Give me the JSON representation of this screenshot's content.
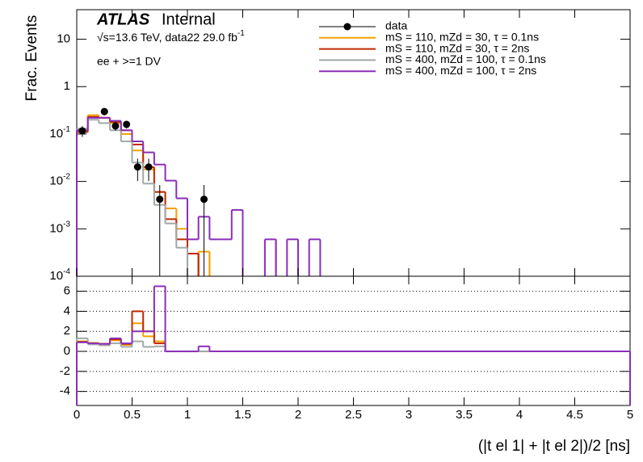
{
  "chart_data": [
    {
      "type": "histogram",
      "log_y": true,
      "ylabel": "Frac. Events",
      "experiment": "ATLAS",
      "status": "Internal",
      "energy_label": "√s=13.6 TeV, data22 29.0 fb",
      "energy_exponent": "-1",
      "channel": "ee + >=1 DV",
      "legend": "top-right",
      "xlim": [
        0,
        5
      ],
      "ylim": [
        0.0001,
        42
      ],
      "yticks": [
        {
          "value": 0.0001,
          "label": "10",
          "exponent": "-4"
        },
        {
          "value": 0.001,
          "label": "10",
          "exponent": "-3"
        },
        {
          "value": 0.01,
          "label": "10",
          "exponent": "-2"
        },
        {
          "value": 0.1,
          "label": "10",
          "exponent": "-1"
        },
        1,
        10
      ],
      "bins": [
        0,
        0.1,
        0.2,
        0.3,
        0.4,
        0.5,
        0.6,
        0.7,
        0.8,
        0.9,
        1.0,
        1.1,
        1.2,
        1.3,
        1.4,
        1.5,
        1.6,
        1.7,
        1.8,
        1.9,
        2.0,
        2.1,
        2.2
      ],
      "series": [
        {
          "name": "data",
          "color": "#000000",
          "marker": "point",
          "values": [
            0.117,
            null,
            0.298,
            0.148,
            0.16,
            0.0202,
            0.0202,
            0.0042,
            null,
            null,
            null,
            0.0042,
            null,
            null,
            null,
            null,
            null,
            null,
            null,
            null,
            null,
            null
          ],
          "errors": [
            0.03,
            null,
            0.05,
            0.03,
            0.03,
            0.01,
            0.01,
            0.0042,
            null,
            null,
            null,
            0.0042,
            null,
            null,
            null,
            null,
            null,
            null,
            null,
            null,
            null,
            null
          ]
        },
        {
          "name": "mS = 110, mZd = 30, τ = 0.1ns",
          "color": "#f5a000",
          "values": [
            0.12,
            0.25,
            0.22,
            0.17,
            0.1,
            0.045,
            0.018,
            0.006,
            0.0027,
            0.001,
            null,
            0.00033,
            null,
            null,
            null,
            null,
            null,
            null,
            null,
            null,
            null,
            null
          ]
        },
        {
          "name": "mS = 110, mZd = 30, τ = 2ns",
          "color": "#c02800",
          "values": [
            0.11,
            0.23,
            0.22,
            0.18,
            0.12,
            0.06,
            0.02,
            0.006,
            0.0016,
            0.0006,
            0.0003,
            null,
            null,
            null,
            null,
            null,
            null,
            null,
            null,
            null,
            null,
            null
          ]
        },
        {
          "name": "mS = 400, mZd = 100, τ = 0.1ns",
          "color": "#a0a8a8",
          "values": [
            0.13,
            0.2,
            0.17,
            0.12,
            0.07,
            0.025,
            0.009,
            0.0032,
            0.0013,
            0.0004,
            null,
            null,
            null,
            null,
            null,
            null,
            null,
            null,
            null,
            null,
            null,
            null
          ]
        },
        {
          "name": "mS = 400, mZd = 100, τ = 2ns",
          "color": "#8a2fb8",
          "values": [
            0.12,
            0.22,
            0.22,
            0.19,
            0.12,
            0.07,
            0.041,
            0.0227,
            0.0104,
            0.0044,
            0.0006,
            0.0018,
            0.0006,
            0.0006,
            0.0025,
            null,
            null,
            0.0006,
            null,
            0.0006,
            null,
            0.0006
          ]
        }
      ]
    },
    {
      "type": "histogram",
      "log_y": false,
      "grid": true,
      "xlabel": "(|t el 1| + |t el 2|)/2 [ns]",
      "xlim": [
        0,
        5
      ],
      "ylim": [
        -5.4,
        7.5
      ],
      "yticks": [
        -4,
        -2,
        0,
        2,
        4,
        6
      ],
      "xticks": [
        0,
        0.5,
        1,
        1.5,
        2,
        2.5,
        3,
        3.5,
        4,
        4.5,
        5
      ],
      "bins": [
        0,
        0.1,
        0.2,
        0.3,
        0.4,
        0.5,
        0.6,
        0.7,
        0.8,
        0.9,
        1.0,
        1.1,
        1.2,
        5
      ],
      "series": [
        {
          "color": "#f5a000",
          "values": [
            1.0,
            0.85,
            0.75,
            1.1,
            0.65,
            2.8,
            1.5,
            1.0,
            0,
            0,
            0,
            0,
            0
          ]
        },
        {
          "color": "#c02800",
          "values": [
            0.95,
            0.75,
            0.75,
            1.2,
            0.75,
            4.0,
            2.0,
            0.8,
            0,
            0,
            0,
            0,
            0
          ]
        },
        {
          "color": "#a0a8a8",
          "values": [
            1.3,
            0.7,
            0.6,
            0.8,
            0.45,
            1.0,
            0.45,
            0.5,
            0,
            0,
            0,
            0,
            0
          ]
        },
        {
          "color": "#8a2fb8",
          "values": [
            0.9,
            0.8,
            0.75,
            1.3,
            0.8,
            2.0,
            2.0,
            6.5,
            0,
            0,
            0,
            0.5,
            0
          ]
        }
      ]
    }
  ]
}
